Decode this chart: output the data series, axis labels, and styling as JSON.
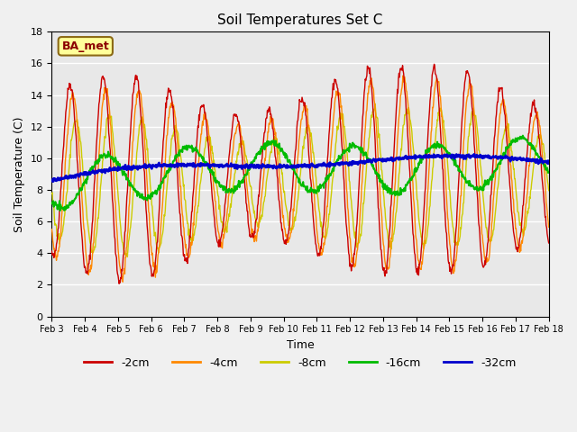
{
  "title": "Soil Temperatures Set C",
  "xlabel": "Time",
  "ylabel": "Soil Temperature (C)",
  "ylim": [
    0,
    18
  ],
  "annotation": "BA_met",
  "series_colors": {
    "-2cm": "#cc0000",
    "-4cm": "#ff8800",
    "-8cm": "#cccc00",
    "-16cm": "#00bb00",
    "-32cm": "#0000cc"
  },
  "legend_entries": [
    "-2cm",
    "-4cm",
    "-8cm",
    "-16cm",
    "-32cm"
  ],
  "x_tick_labels": [
    "Feb 3",
    "Feb 4",
    "Feb 5",
    "Feb 6",
    "Feb 7",
    "Feb 8",
    "Feb 9",
    "Feb 10",
    "Feb 11",
    "Feb 12",
    "Feb 13",
    "Feb 14",
    "Feb 15",
    "Feb 16",
    "Feb 17",
    "Feb 18"
  ],
  "n_points": 960,
  "days": 15
}
